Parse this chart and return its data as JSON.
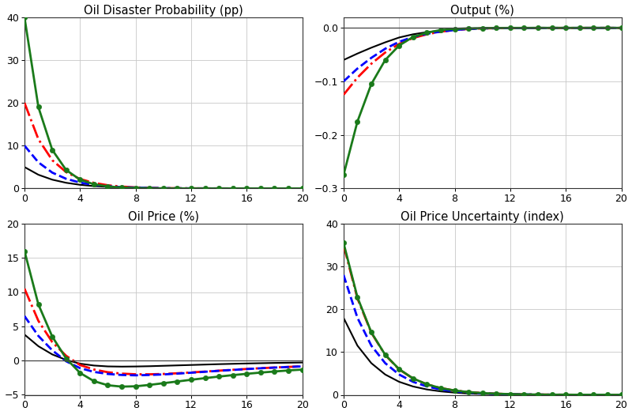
{
  "titles": [
    "Oil Disaster Probability (pp)",
    "Output (%)",
    "Oil Price (%)",
    "Oil Price Uncertainty (index)"
  ],
  "x": [
    0,
    1,
    2,
    3,
    4,
    5,
    6,
    7,
    8,
    9,
    10,
    11,
    12,
    13,
    14,
    15,
    16,
    17,
    18,
    19,
    20
  ],
  "series": {
    "black": {
      "color": "#000000",
      "linestyle": "-",
      "linewidth": 1.5,
      "marker": null,
      "zorder": 2,
      "panel1": [
        5.0,
        3.2,
        2.05,
        1.32,
        0.85,
        0.55,
        0.36,
        0.23,
        0.15,
        0.097,
        0.063,
        0.041,
        0.027,
        0.017,
        0.011,
        0.007,
        0.005,
        0.003,
        0.002,
        0.001,
        0.001
      ],
      "panel2": [
        -0.06,
        -0.048,
        -0.037,
        -0.027,
        -0.018,
        -0.012,
        -0.008,
        -0.005,
        -0.003,
        -0.002,
        -0.001,
        -0.0007,
        -0.0004,
        -0.0003,
        -0.0002,
        -0.0001,
        -7e-05,
        -5e-05,
        -3e-05,
        -2e-05,
        0.0
      ],
      "panel3": [
        3.8,
        2.1,
        0.9,
        0.1,
        -0.45,
        -0.72,
        -0.85,
        -0.88,
        -0.86,
        -0.82,
        -0.76,
        -0.7,
        -0.64,
        -0.58,
        -0.52,
        -0.47,
        -0.42,
        -0.38,
        -0.34,
        -0.31,
        -0.28
      ],
      "panel4": [
        18.0,
        11.5,
        7.4,
        4.75,
        3.05,
        1.96,
        1.26,
        0.81,
        0.52,
        0.33,
        0.21,
        0.14,
        0.09,
        0.058,
        0.037,
        0.024,
        0.015,
        0.01,
        0.006,
        0.004,
        0.003
      ]
    },
    "red": {
      "color": "#ff0000",
      "linestyle": "-.",
      "linewidth": 2.0,
      "marker": null,
      "zorder": 3,
      "panel1": [
        20.0,
        11.5,
        6.6,
        3.8,
        2.2,
        1.3,
        0.74,
        0.43,
        0.25,
        0.145,
        0.084,
        0.049,
        0.028,
        0.016,
        0.01,
        0.006,
        0.003,
        0.002,
        0.001,
        0.001,
        0.0
      ],
      "panel2": [
        -0.125,
        -0.093,
        -0.067,
        -0.046,
        -0.03,
        -0.019,
        -0.012,
        -0.007,
        -0.004,
        -0.002,
        -0.001,
        -0.0007,
        -0.0004,
        -0.0003,
        -0.0001,
        -0.0001,
        -6e-05,
        -4e-05,
        -2e-05,
        -1e-05,
        0.0
      ],
      "panel3": [
        10.5,
        5.8,
        2.7,
        0.7,
        -0.65,
        -1.3,
        -1.7,
        -1.9,
        -2.0,
        -2.0,
        -1.95,
        -1.85,
        -1.73,
        -1.6,
        -1.47,
        -1.34,
        -1.22,
        -1.11,
        -1.01,
        -0.92,
        -0.84
      ],
      "panel4": [
        35.0,
        22.5,
        14.5,
        9.3,
        5.95,
        3.82,
        2.45,
        1.57,
        1.01,
        0.65,
        0.42,
        0.27,
        0.17,
        0.11,
        0.071,
        0.046,
        0.03,
        0.019,
        0.012,
        0.008,
        0.005
      ]
    },
    "blue": {
      "color": "#0000ff",
      "linestyle": "--",
      "linewidth": 2.0,
      "marker": null,
      "zorder": 3,
      "panel1": [
        10.0,
        6.1,
        3.7,
        2.25,
        1.37,
        0.83,
        0.51,
        0.31,
        0.19,
        0.115,
        0.07,
        0.043,
        0.026,
        0.016,
        0.01,
        0.006,
        0.004,
        0.002,
        0.001,
        0.001,
        0.0
      ],
      "panel2": [
        -0.1,
        -0.076,
        -0.056,
        -0.039,
        -0.026,
        -0.017,
        -0.011,
        -0.007,
        -0.004,
        -0.002,
        -0.001,
        -0.0007,
        -0.0004,
        -0.0002,
        -0.0001,
        -0.0001,
        -5e-05,
        -3e-05,
        -2e-05,
        -1e-05,
        0.0
      ],
      "panel3": [
        6.5,
        3.6,
        1.5,
        -0.1,
        -1.1,
        -1.65,
        -1.95,
        -2.1,
        -2.15,
        -2.1,
        -2.02,
        -1.9,
        -1.77,
        -1.63,
        -1.49,
        -1.36,
        -1.24,
        -1.12,
        -1.02,
        -0.93,
        -0.84
      ],
      "panel4": [
        28.0,
        18.0,
        11.5,
        7.4,
        4.75,
        3.05,
        1.96,
        1.26,
        0.81,
        0.52,
        0.33,
        0.21,
        0.14,
        0.09,
        0.058,
        0.037,
        0.024,
        0.015,
        0.01,
        0.006,
        0.004
      ]
    },
    "green": {
      "color": "#1a7a1a",
      "linestyle": "-",
      "linewidth": 2.0,
      "marker": "o",
      "markersize": 4.5,
      "zorder": 4,
      "panel1": [
        40.0,
        19.0,
        9.0,
        4.3,
        2.05,
        0.98,
        0.47,
        0.22,
        0.107,
        0.051,
        0.025,
        0.012,
        0.006,
        0.003,
        0.001,
        0.001,
        0.0,
        0.0,
        0.0,
        0.0,
        0.0
      ],
      "panel2": [
        -0.275,
        -0.175,
        -0.105,
        -0.06,
        -0.033,
        -0.017,
        -0.009,
        -0.004,
        -0.002,
        -0.001,
        -0.0005,
        -0.0002,
        -0.0001,
        -6e-05,
        -3e-05,
        -2e-05,
        -1e-05,
        -5e-06,
        -3e-06,
        -1e-06,
        0.0
      ],
      "panel3": [
        16.0,
        8.2,
        3.5,
        0.3,
        -1.8,
        -3.0,
        -3.6,
        -3.8,
        -3.75,
        -3.55,
        -3.3,
        -3.05,
        -2.8,
        -2.56,
        -2.33,
        -2.12,
        -1.93,
        -1.75,
        -1.59,
        -1.44,
        -1.31
      ],
      "panel4": [
        35.5,
        22.8,
        14.6,
        9.35,
        6.0,
        3.84,
        2.46,
        1.58,
        1.01,
        0.65,
        0.42,
        0.27,
        0.17,
        0.11,
        0.071,
        0.046,
        0.03,
        0.019,
        0.012,
        0.008,
        0.005
      ]
    }
  },
  "panel1_ylim": [
    0,
    40
  ],
  "panel1_yticks": [
    0,
    10,
    20,
    30,
    40
  ],
  "panel2_ylim": [
    -0.3,
    0.02
  ],
  "panel2_yticks": [
    0,
    -0.1,
    -0.2,
    -0.3
  ],
  "panel3_ylim": [
    -5,
    20
  ],
  "panel3_yticks": [
    -5,
    0,
    5,
    10,
    15,
    20
  ],
  "panel4_ylim": [
    0,
    40
  ],
  "panel4_yticks": [
    0,
    10,
    20,
    30,
    40
  ],
  "xlim": [
    0,
    20
  ],
  "xticks": [
    0,
    4,
    8,
    12,
    16,
    20
  ],
  "background_color": "#ffffff",
  "grid_color": "#c8c8c8"
}
